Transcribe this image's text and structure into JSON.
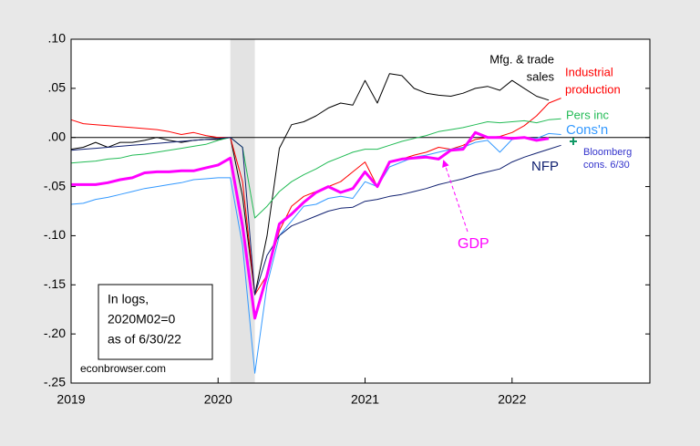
{
  "chart_data": {
    "type": "line",
    "x": [
      0,
      1,
      2,
      3,
      4,
      5,
      6,
      7,
      8,
      9,
      10,
      11,
      12,
      13,
      14,
      15,
      16,
      17,
      18,
      19,
      20,
      21,
      22,
      23,
      24,
      25,
      26,
      27,
      28,
      29,
      30,
      31,
      32,
      33,
      34,
      35,
      36,
      37,
      38,
      39,
      40
    ],
    "xlim": [
      0,
      47.25
    ],
    "xticks": [
      {
        "value": 0,
        "label": "2019"
      },
      {
        "value": 12,
        "label": "2020"
      },
      {
        "value": 24,
        "label": "2021"
      },
      {
        "value": 36,
        "label": "2022"
      }
    ],
    "ylim": [
      -0.25,
      0.1
    ],
    "yticks": [
      {
        "value": -0.25,
        "label": "-.25"
      },
      {
        "value": -0.2,
        "label": "-.20"
      },
      {
        "value": -0.15,
        "label": "-.15"
      },
      {
        "value": -0.1,
        "label": "-.10"
      },
      {
        "value": -0.05,
        "label": "-.05"
      },
      {
        "value": 0,
        "label": ".00"
      },
      {
        "value": 0.05,
        "label": ".05"
      },
      {
        "value": 0.1,
        "label": ".10"
      }
    ],
    "shade": [
      13,
      15
    ],
    "series": [
      {
        "name": [
          "Mfg. & trade",
          "sales"
        ],
        "color": "#000000",
        "width": 1,
        "values": [
          -0.012,
          -0.01,
          -0.005,
          -0.01,
          -0.005,
          -0.005,
          -0.003,
          0.0,
          -0.003,
          -0.005,
          -0.003,
          -0.002,
          -0.002,
          0.0,
          -0.06,
          -0.16,
          -0.1,
          -0.011,
          0.013,
          0.016,
          0.022,
          0.03,
          0.035,
          0.033,
          0.058,
          0.035,
          0.065,
          0.063,
          0.05,
          0.045,
          0.043,
          0.042,
          0.045,
          0.05,
          0.052,
          0.048,
          0.058,
          0.05,
          0.042,
          0.038,
          null
        ]
      },
      {
        "name": [
          "Industrial",
          "production"
        ],
        "color": "#ff0000",
        "width": 1,
        "values": [
          0.018,
          0.014,
          0.013,
          0.012,
          0.011,
          0.01,
          0.009,
          0.008,
          0.006,
          0.003,
          0.005,
          0.002,
          0.0,
          0.0,
          -0.045,
          -0.16,
          -0.14,
          -0.095,
          -0.07,
          -0.06,
          -0.055,
          -0.05,
          -0.045,
          -0.035,
          -0.025,
          -0.05,
          -0.025,
          -0.022,
          -0.018,
          -0.015,
          -0.01,
          -0.012,
          -0.008,
          -0.002,
          0.0,
          0.001,
          0.005,
          0.012,
          0.022,
          0.035,
          0.04
        ]
      },
      {
        "name": [
          "Pers inc"
        ],
        "color": "#22bb55",
        "width": 1,
        "values": [
          -0.026,
          -0.025,
          -0.024,
          -0.022,
          -0.021,
          -0.018,
          -0.017,
          -0.015,
          -0.013,
          -0.011,
          -0.009,
          -0.007,
          -0.003,
          0.0,
          -0.01,
          -0.082,
          -0.07,
          -0.055,
          -0.045,
          -0.038,
          -0.032,
          -0.025,
          -0.02,
          -0.015,
          -0.012,
          -0.012,
          -0.008,
          -0.004,
          -0.001,
          0.002,
          0.006,
          0.008,
          0.01,
          0.013,
          0.016,
          0.015,
          0.016,
          0.017,
          0.015,
          0.018,
          0.019
        ]
      },
      {
        "name": [
          "Cons'n"
        ],
        "color": "#3399ff",
        "width": 1,
        "values": [
          -0.068,
          -0.067,
          -0.063,
          -0.061,
          -0.058,
          -0.055,
          -0.052,
          -0.05,
          -0.048,
          -0.046,
          -0.043,
          -0.042,
          -0.041,
          -0.041,
          -0.11,
          -0.24,
          -0.15,
          -0.1,
          -0.085,
          -0.07,
          -0.068,
          -0.062,
          -0.06,
          -0.062,
          -0.045,
          -0.05,
          -0.03,
          -0.025,
          -0.02,
          -0.018,
          -0.015,
          -0.012,
          -0.01,
          -0.005,
          -0.003,
          -0.015,
          -0.002,
          0.0,
          -0.001,
          0.004,
          0.003
        ]
      },
      {
        "name": [
          "NFP"
        ],
        "color": "#102070",
        "width": 1,
        "values": [
          -0.013,
          -0.012,
          -0.011,
          -0.01,
          -0.009,
          -0.008,
          -0.007,
          -0.006,
          -0.005,
          -0.004,
          -0.003,
          -0.002,
          -0.001,
          0.0,
          -0.01,
          -0.16,
          -0.12,
          -0.1,
          -0.09,
          -0.085,
          -0.08,
          -0.075,
          -0.072,
          -0.071,
          -0.065,
          -0.063,
          -0.06,
          -0.058,
          -0.055,
          -0.052,
          -0.048,
          -0.045,
          -0.042,
          -0.038,
          -0.035,
          -0.032,
          -0.025,
          -0.02,
          -0.016,
          -0.012,
          -0.008
        ]
      },
      {
        "name": [
          "GDP"
        ],
        "color": "#ff00ff",
        "width": 3,
        "values": [
          -0.048,
          -0.048,
          -0.048,
          -0.046,
          -0.043,
          -0.041,
          -0.036,
          -0.035,
          -0.035,
          -0.034,
          -0.034,
          -0.031,
          -0.028,
          -0.021,
          -0.09,
          -0.184,
          -0.14,
          -0.088,
          -0.078,
          -0.066,
          -0.056,
          -0.05,
          -0.056,
          -0.052,
          -0.035,
          -0.05,
          -0.025,
          -0.022,
          -0.021,
          -0.02,
          -0.022,
          -0.013,
          -0.012,
          0.005,
          0.0,
          0.0,
          -0.001,
          0.0,
          -0.003,
          -0.001,
          null
        ]
      }
    ],
    "markers": [
      {
        "name": [
          "Bloomberg",
          "cons. 6/30"
        ],
        "color": "#119966",
        "x": 41,
        "value": -0.004
      }
    ],
    "annotation": [
      "In logs,",
      "2020M02=0",
      "as of 6/30/22"
    ],
    "source": "econbrowser.com"
  }
}
